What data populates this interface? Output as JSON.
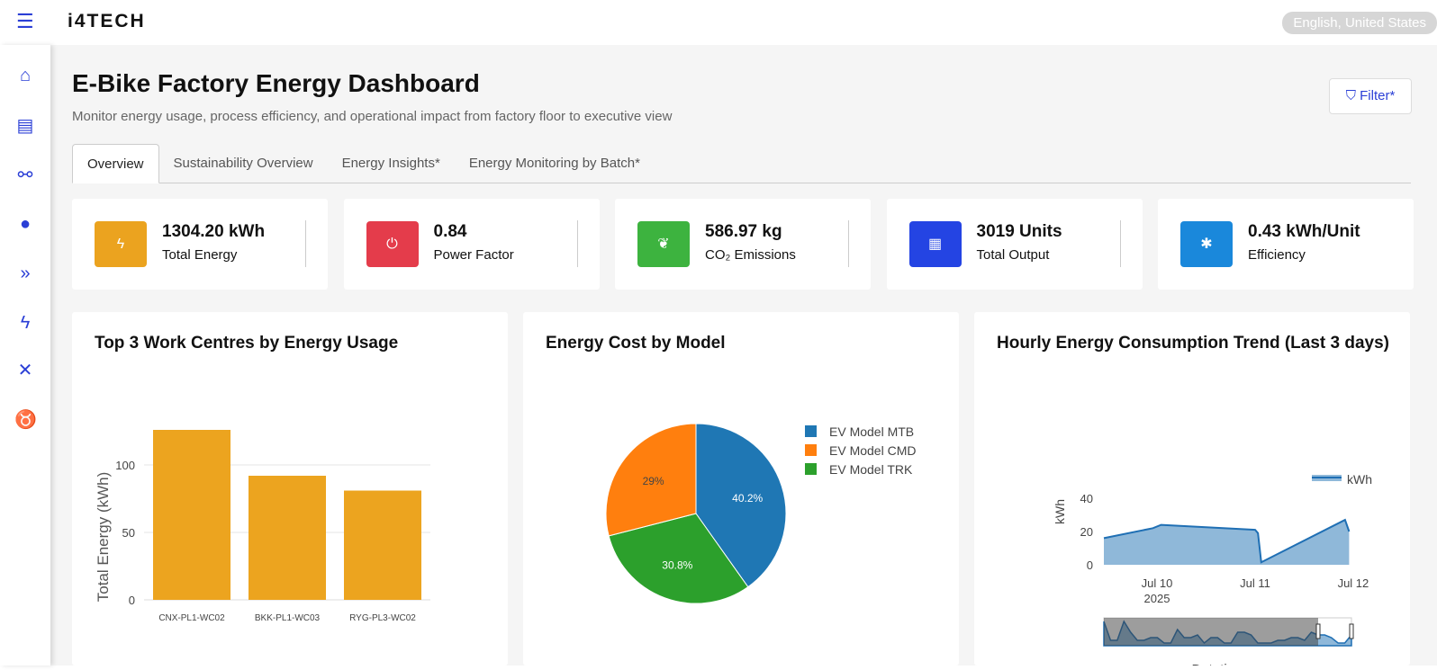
{
  "header": {
    "logo": "i4TECH",
    "language": "English, United States"
  },
  "page": {
    "title": "E-Bike Factory Energy Dashboard",
    "subtitle": "Monitor energy usage, process efficiency, and operational impact from factory floor to executive view",
    "filter_label": "Filter*"
  },
  "tabs": [
    "Overview",
    "Sustainability Overview",
    "Energy Insights*",
    "Energy Monitoring by Batch*"
  ],
  "kpis": [
    {
      "value": "1304.20 kWh",
      "label": "Total Energy",
      "color": "#eba31f",
      "icon": "bolt-icon"
    },
    {
      "value": "0.84",
      "label": "Power Factor",
      "color": "#e43c4b",
      "icon": "power-icon"
    },
    {
      "value": "586.97 kg",
      "label": "CO₂ Emissions",
      "color": "#3db33f",
      "icon": "leaf-icon"
    },
    {
      "value": "3019 Units",
      "label": "Total Output",
      "color": "#2444e3",
      "icon": "cubes-icon"
    },
    {
      "value": "0.43 kWh/Unit",
      "label": "Efficiency",
      "color": "#1a88db",
      "icon": "gear-icon"
    }
  ],
  "chart_data": [
    {
      "type": "bar",
      "title": "Top 3 Work Centres by Energy Usage",
      "categories": [
        "CNX-PL1-WC02",
        "BKK-PL1-WC03",
        "RYG-PL3-WC02"
      ],
      "values": [
        126,
        92,
        81
      ],
      "ylabel": "Total Energy (kWh)",
      "xlabel": "",
      "ylim": [
        0,
        135
      ],
      "yticks": [
        0,
        50,
        100
      ],
      "color": "#eca41f"
    },
    {
      "type": "pie",
      "title": "Energy Cost by Model",
      "labels": [
        "EV Model MTB",
        "EV Model CMD",
        "EV Model TRK"
      ],
      "values": [
        40.2,
        29,
        30.8
      ],
      "value_labels": [
        "40.2%",
        "29%",
        "30.8%"
      ],
      "colors": [
        "#1f77b4",
        "#ff7f0e",
        "#2ca02c"
      ],
      "legend": "right"
    },
    {
      "type": "area",
      "title": "Hourly Energy Consumption Trend (Last 3 days)",
      "series_name": "kWh",
      "xlabel": "Datetime",
      "ylabel": "kWh",
      "ylim": [
        0,
        42
      ],
      "yticks": [
        0,
        20,
        40
      ],
      "xticks": [
        "Jul 10",
        "Jul 11",
        "Jul 12"
      ],
      "xtick_sub": [
        "2025",
        "",
        ""
      ],
      "x_hours_from_jul9": [
        11,
        23,
        25,
        48,
        48.7,
        49.5,
        70,
        71
      ],
      "y": [
        16,
        22,
        24,
        21,
        19,
        1.5,
        27,
        20
      ],
      "rangeslider": [
        9,
        2,
        2,
        9,
        5,
        2,
        2,
        3,
        3,
        1,
        1,
        6,
        3,
        3,
        4,
        1,
        3,
        3,
        1,
        1,
        5,
        5,
        4,
        1,
        1,
        1,
        2,
        2,
        3,
        3,
        2,
        5,
        4,
        4,
        3,
        1,
        1,
        4
      ]
    }
  ],
  "sidebar": [
    "home-icon",
    "server-icon",
    "handshake-icon",
    "globe-icon",
    "chevrons-icon",
    "bolt-icon",
    "tools-icon",
    "piggy-bank-icon"
  ]
}
